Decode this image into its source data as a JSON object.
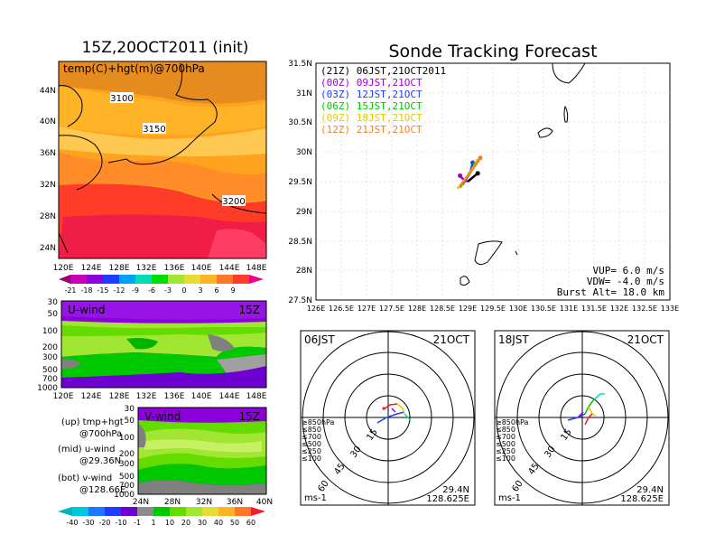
{
  "titles": {
    "left": "15Z,20OCT2011 (init)",
    "right": "Sonde Tracking Forecast"
  },
  "map": {
    "label": "temp(C)+hgt(m)@700hPa",
    "lat_ticks": [
      "44N",
      "40N",
      "36N",
      "32N",
      "28N",
      "24N"
    ],
    "lon_ticks": [
      "120E",
      "124E",
      "128E",
      "132E",
      "136E",
      "140E",
      "144E",
      "148E"
    ],
    "contours": [
      "3100",
      "3150",
      "3200"
    ],
    "colorbar": [
      "-21",
      "-18",
      "-15",
      "-12",
      "-9",
      "-6",
      "-3",
      "0",
      "3",
      "6",
      "9"
    ]
  },
  "uwind": {
    "label": "U-wind",
    "time": "15Z",
    "p_ticks": [
      "30",
      "50",
      "100",
      "200",
      "300",
      "500",
      "700",
      "1000"
    ],
    "lon_ticks": [
      "120E",
      "124E",
      "128E",
      "132E",
      "136E",
      "140E",
      "144E",
      "148E"
    ]
  },
  "vwind": {
    "label": "V-wind",
    "time": "15Z",
    "p_ticks": [
      "30",
      "50",
      "100",
      "200",
      "300",
      "500",
      "700",
      "1000"
    ],
    "lat_ticks": [
      "24N",
      "28N",
      "32N",
      "36N",
      "40N"
    ],
    "colorbar": [
      "-40",
      "-30",
      "-20",
      "-10",
      "-1",
      "1",
      "10",
      "20",
      "30",
      "40",
      "50",
      "60"
    ]
  },
  "legend_notes": {
    "up1": "(up) tmp+hgt",
    "up2": "@700hPa",
    "mid1": "(mid) u-wind",
    "mid2": "@29.36N",
    "bot1": "(bot) v-wind",
    "bot2": "@128.66E"
  },
  "track": {
    "lat_ticks": [
      "31.5N",
      "31N",
      "30.5N",
      "30N",
      "29.5N",
      "29N",
      "28.5N",
      "28N",
      "27.5N"
    ],
    "lon_ticks": [
      "126E",
      "126.5E",
      "127E",
      "127.5E",
      "128E",
      "128.5E",
      "129E",
      "129.5E",
      "130E",
      "130.5E",
      "131E",
      "131.5E",
      "132E",
      "132.5E",
      "133E"
    ],
    "legend": [
      {
        "label": "(21Z)  06JST,21OCT2011",
        "color": "#000000"
      },
      {
        "label": "(00Z)  09JST,21OCT",
        "color": "#a000c8"
      },
      {
        "label": "(03Z)  12JST,21OCT",
        "color": "#1e3cff"
      },
      {
        "label": "(06Z)  15JST,21OCT",
        "color": "#00c800"
      },
      {
        "label": "(09Z)  18JST,21OCT",
        "color": "#e6c800"
      },
      {
        "label": "(12Z)  21JST,21OCT",
        "color": "#f08228"
      }
    ],
    "params": {
      "vup": "VUP=  6.0  m/s",
      "vdw": "VDW=  -4.0  m/s",
      "burst": "Burst Alt=  18.0  km"
    }
  },
  "hodo_left": {
    "time": "06JST",
    "date": "21OCT",
    "rings": [
      "15",
      "30",
      "45",
      "60"
    ],
    "levels": [
      "≥850hPa",
      "≤850",
      "≤700",
      "≤500",
      "≤250",
      "≤100"
    ],
    "unit": "ms-1",
    "lat": "29.4N",
    "lon": "128.625E"
  },
  "hodo_right": {
    "time": "18JST",
    "date": "21OCT",
    "rings": [
      "15",
      "30",
      "45",
      "60"
    ],
    "levels": [
      "≥850hPa",
      "≤850",
      "≤700",
      "≤500",
      "≤250",
      "≤100"
    ],
    "unit": "ms-1",
    "lat": "29.4N",
    "lon": "128.625E"
  },
  "chart_data": [
    {
      "type": "heatmap",
      "title": "15Z,20OCT2011 (init)",
      "xlabel": "",
      "ylabel": "",
      "xlim": [
        120,
        150
      ],
      "ylim": [
        22,
        47
      ],
      "contour_values": [
        3100,
        3150,
        3200
      ],
      "colorbar_ticks": [
        -21,
        -18,
        -15,
        -12,
        -9,
        -6,
        -3,
        0,
        3,
        6,
        9
      ]
    },
    {
      "type": "line",
      "title": "Sonde Tracking Forecast",
      "xlim": [
        126,
        133
      ],
      "ylim": [
        27.5,
        31.5
      ],
      "series": [
        {
          "name": "(21Z) 06JST,21OCT2011",
          "x": [
            129.0,
            129.2
          ],
          "y": [
            29.5,
            29.64
          ]
        },
        {
          "name": "(00Z) 09JST,21OCT",
          "x": [
            129.0,
            128.9,
            128.85
          ],
          "y": [
            29.5,
            29.55,
            29.6
          ]
        },
        {
          "name": "(03Z) 12JST,21OCT",
          "x": [
            128.9,
            129.05,
            129.1
          ],
          "y": [
            29.45,
            29.65,
            29.82
          ]
        },
        {
          "name": "(06Z) 15JST,21OCT",
          "x": [
            128.85,
            129.0,
            129.15
          ],
          "y": [
            29.4,
            29.6,
            29.8
          ]
        },
        {
          "name": "(09Z) 18JST,21OCT",
          "x": [
            128.8,
            129.0,
            129.2
          ],
          "y": [
            29.38,
            29.6,
            29.85
          ]
        },
        {
          "name": "(12Z) 21JST,21OCT",
          "x": [
            128.85,
            129.05,
            129.25
          ],
          "y": [
            29.42,
            29.65,
            29.9
          ]
        }
      ],
      "params": {
        "VUP": 6.0,
        "VDW": -4.0,
        "Burst_Alt_km": 18.0
      }
    }
  ]
}
